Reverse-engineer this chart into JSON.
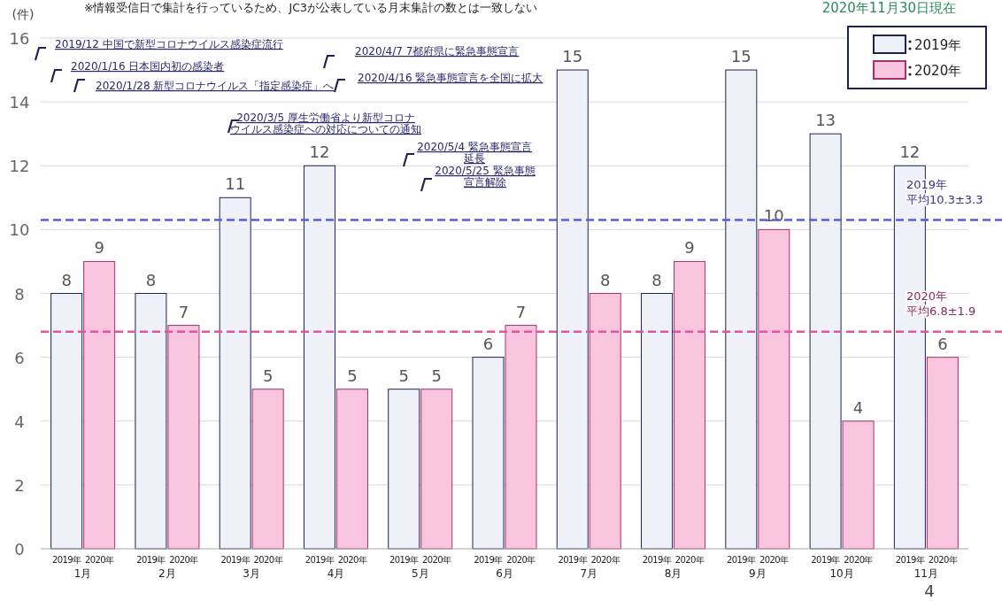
{
  "chart_data": {
    "type": "bar",
    "subtitle": "2020年11月30日現在",
    "ylabel": "(件)",
    "categories": [
      "1月",
      "2月",
      "3月",
      "4月",
      "5月",
      "6月",
      "7月",
      "8月",
      "9月",
      "10月",
      "11月"
    ],
    "series": [
      {
        "name": "2019年",
        "color": "#eef2f8",
        "values": [
          8,
          8,
          11,
          12,
          5,
          6,
          15,
          8,
          15,
          13,
          12
        ]
      },
      {
        "name": "2020年",
        "color": "#f8c4de",
        "values": [
          9,
          7,
          5,
          5,
          5,
          7,
          8,
          9,
          10,
          4,
          6
        ]
      }
    ],
    "ylim": [
      0,
      16
    ],
    "yticks": [
      0,
      2,
      4,
      6,
      8,
      10,
      12,
      14,
      16
    ],
    "grid": "y",
    "legend": "top right",
    "data_labels": true,
    "ref_lines": [
      {
        "axis": "y",
        "value": 10.3,
        "label": "2019年平均10.3±3.3",
        "color": "#5b5be0",
        "line_style": "dashed"
      },
      {
        "axis": "y",
        "value": 6.8,
        "label": "2020年平均6.8±1.9",
        "color": "#e0559e",
        "line_style": "dashed"
      }
    ],
    "annotations": [
      "※情報受信日で集計を行っているため、JC3が公表している月末集計の数とは一致しない",
      "2019/12 中国で新型コロナウイルス感染症流行",
      "2020/1/16 日本国内初の感染者",
      "2020/1/28 新型コロナウイルス「指定感染症」へ",
      "2020/3/5 厚生労働省より新型コロナウイルス感染症への対応についての通知",
      "2020/4/7 7都府県に緊急事態宣言",
      "2020/4/16 緊急事態宣言を全国に拡大",
      "2020/5/4 緊急事態宣言延長",
      "2020/5/25 緊急事態宣言解除",
      "4"
    ]
  }
}
